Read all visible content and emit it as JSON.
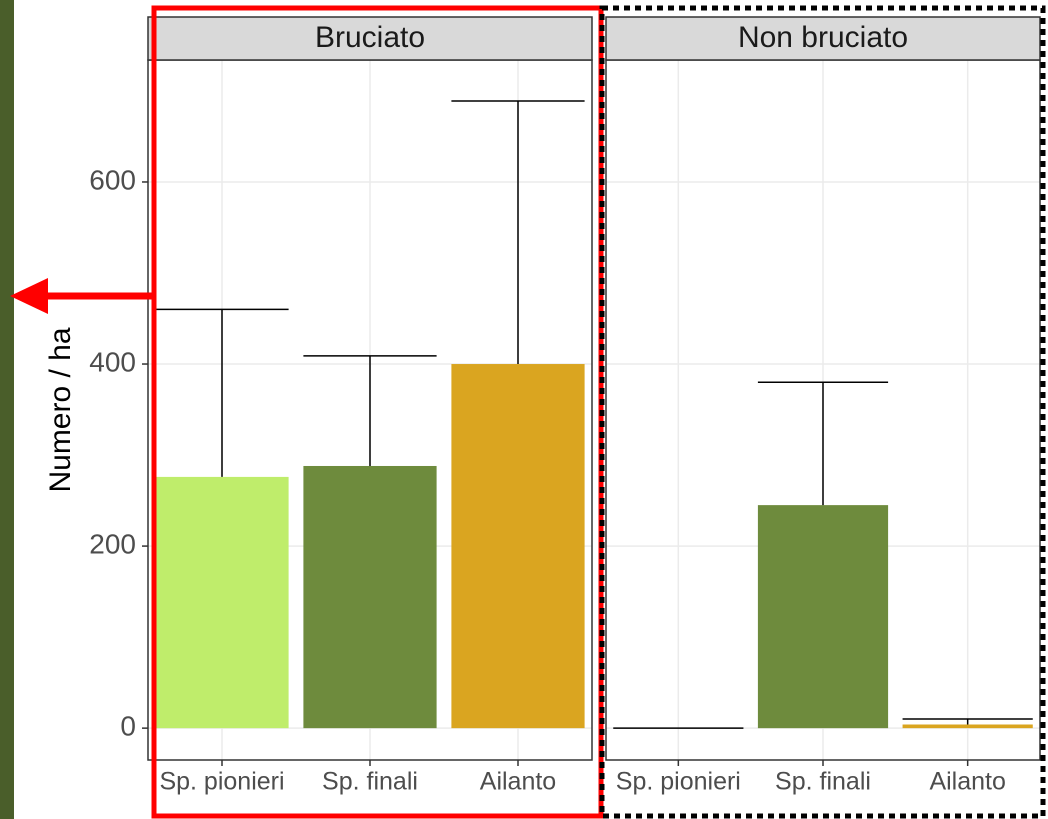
{
  "chart_data": [
    {
      "type": "bar",
      "title": "Bruciato",
      "ylabel": "Numero / ha",
      "categories": [
        "Sp. pionieri",
        "Sp. finali",
        "Ailanto"
      ],
      "values": [
        276,
        288,
        400
      ],
      "errors": [
        184,
        121,
        289
      ],
      "colors": [
        "#bfed6b",
        "#6e8b3d",
        "#daa520"
      ],
      "ylim": [
        -35,
        734
      ],
      "yticks": [
        0,
        200,
        400,
        600
      ],
      "grid": true
    },
    {
      "type": "bar",
      "title": "Non bruciato",
      "categories": [
        "Sp. pionieri",
        "Sp. finali",
        "Ailanto"
      ],
      "values": [
        0,
        245,
        4
      ],
      "errors": [
        0,
        135,
        6
      ],
      "colors": [
        "#bfed6b",
        "#6e8b3d",
        "#daa520"
      ],
      "ylim": [
        -35,
        734
      ],
      "yticks": [
        0,
        200,
        400,
        600
      ],
      "grid": true
    }
  ]
}
